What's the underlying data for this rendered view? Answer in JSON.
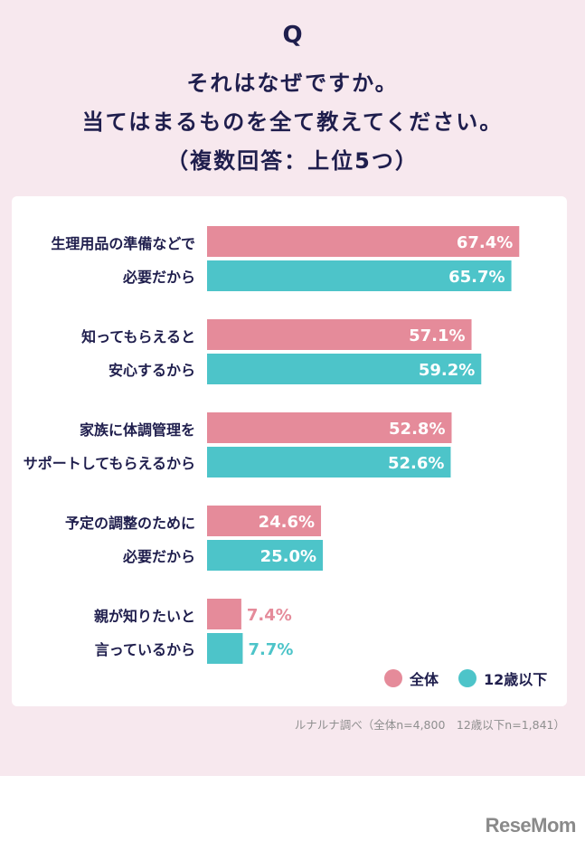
{
  "header": {
    "q": "Q",
    "line1": "それはなぜですか。",
    "line2": "当てはまるものを全て教えてください。",
    "line3": "（複数回答：上位5つ）"
  },
  "colors": {
    "all": "#e58b9a",
    "under12": "#4dc4c9",
    "text": "#1f1e4d"
  },
  "legend": {
    "all": "全体",
    "under12": "12歳以下"
  },
  "source": "ルナルナ調べ（全体n=4,800　12歳以下n=1,841）",
  "logo": "ReseMom",
  "chart_data": {
    "type": "bar",
    "orientation": "horizontal",
    "categories": [
      [
        "生理用品の準備などで",
        "必要だから"
      ],
      [
        "知ってもらえると",
        "安心するから"
      ],
      [
        "家族に体調管理を",
        "サポートしてもらえるから"
      ],
      [
        "予定の調整のために",
        "必要だから"
      ],
      [
        "親が知りたいと",
        "言っているから"
      ]
    ],
    "series": [
      {
        "name": "全体",
        "values": [
          67.4,
          57.1,
          52.8,
          24.6,
          7.4
        ]
      },
      {
        "name": "12歳以下",
        "values": [
          65.7,
          59.2,
          52.6,
          25.0,
          7.7
        ]
      }
    ],
    "value_labels": [
      [
        "67.4%",
        "57.1%",
        "52.8%",
        "24.6%",
        "7.4%"
      ],
      [
        "65.7%",
        "59.2%",
        "52.6%",
        "25.0%",
        "7.7%"
      ]
    ],
    "xlim": [
      0,
      70
    ],
    "legend_position": "bottom-right",
    "grid": false
  }
}
